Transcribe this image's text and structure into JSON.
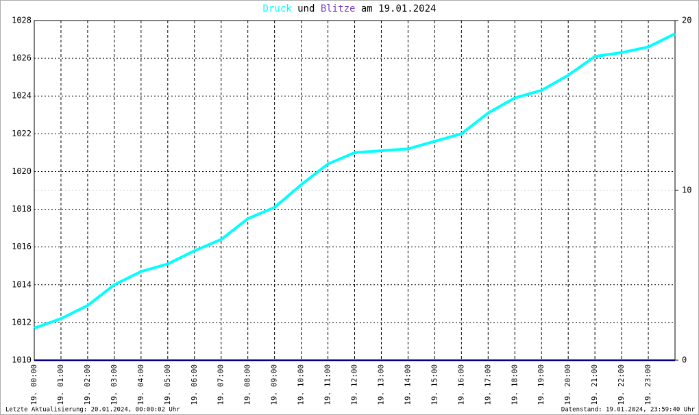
{
  "chart_data": {
    "type": "line",
    "title_joiner": "und",
    "title_date": "am 19.01.2024",
    "x": [
      0,
      1,
      2,
      3,
      4,
      5,
      6,
      7,
      8,
      9,
      10,
      11,
      12,
      13,
      14,
      15,
      16,
      17,
      18,
      19,
      20,
      21,
      22,
      23,
      24
    ],
    "series": [
      {
        "name": "Druck",
        "color": "#00ffff",
        "values": [
          1011.7,
          1012.2,
          1012.9,
          1014.0,
          1014.7,
          1015.1,
          1015.8,
          1016.4,
          1017.5,
          1018.1,
          1019.3,
          1020.4,
          1021.0,
          1021.1,
          1021.2,
          1021.6,
          1022.0,
          1023.1,
          1023.9,
          1024.3,
          1025.1,
          1026.1,
          1026.3,
          1026.6,
          1027.3
        ]
      },
      {
        "name": "Blitze",
        "color": "#000080",
        "axis": "y2",
        "values": [
          0,
          0,
          0,
          0,
          0,
          0,
          0,
          0,
          0,
          0,
          0,
          0,
          0,
          0,
          0,
          0,
          0,
          0,
          0,
          0,
          0,
          0,
          0,
          0,
          0
        ]
      }
    ],
    "xlim": [
      0,
      24
    ],
    "xticks": [
      {
        "value": 0,
        "label": "19. 00:00"
      },
      {
        "value": 1,
        "label": "19. 01:00"
      },
      {
        "value": 2,
        "label": "19. 02:00"
      },
      {
        "value": 3,
        "label": "19. 03:00"
      },
      {
        "value": 4,
        "label": "19. 04:00"
      },
      {
        "value": 5,
        "label": "19. 05:00"
      },
      {
        "value": 6,
        "label": "19. 06:00"
      },
      {
        "value": 7,
        "label": "19. 07:00"
      },
      {
        "value": 8,
        "label": "19. 08:00"
      },
      {
        "value": 9,
        "label": "19. 09:00"
      },
      {
        "value": 10,
        "label": "19. 10:00"
      },
      {
        "value": 11,
        "label": "19. 11:00"
      },
      {
        "value": 12,
        "label": "19. 12:00"
      },
      {
        "value": 13,
        "label": "19. 13:00"
      },
      {
        "value": 14,
        "label": "19. 14:00"
      },
      {
        "value": 15,
        "label": "19. 15:00"
      },
      {
        "value": 16,
        "label": "19. 16:00"
      },
      {
        "value": 17,
        "label": "19. 17:00"
      },
      {
        "value": 18,
        "label": "19. 18:00"
      },
      {
        "value": 19,
        "label": "19. 19:00"
      },
      {
        "value": 20,
        "label": "19. 20:00"
      },
      {
        "value": 21,
        "label": "19. 21:00"
      },
      {
        "value": 22,
        "label": "19. 22:00"
      },
      {
        "value": 23,
        "label": "19. 23:00"
      }
    ],
    "ylim": [
      1010,
      1028
    ],
    "yticks": [
      1010,
      1012,
      1014,
      1016,
      1018,
      1020,
      1022,
      1024,
      1026,
      1028
    ],
    "y2lim": [
      0,
      20
    ],
    "y2ticks": [
      0,
      10,
      20
    ],
    "grid": true
  },
  "footer_left": "Letzte Aktualisierung: 20.01.2024, 00:00:02 Uhr",
  "footer_right": "Datenstand: 19.01.2024, 23:59:40 Uhr"
}
